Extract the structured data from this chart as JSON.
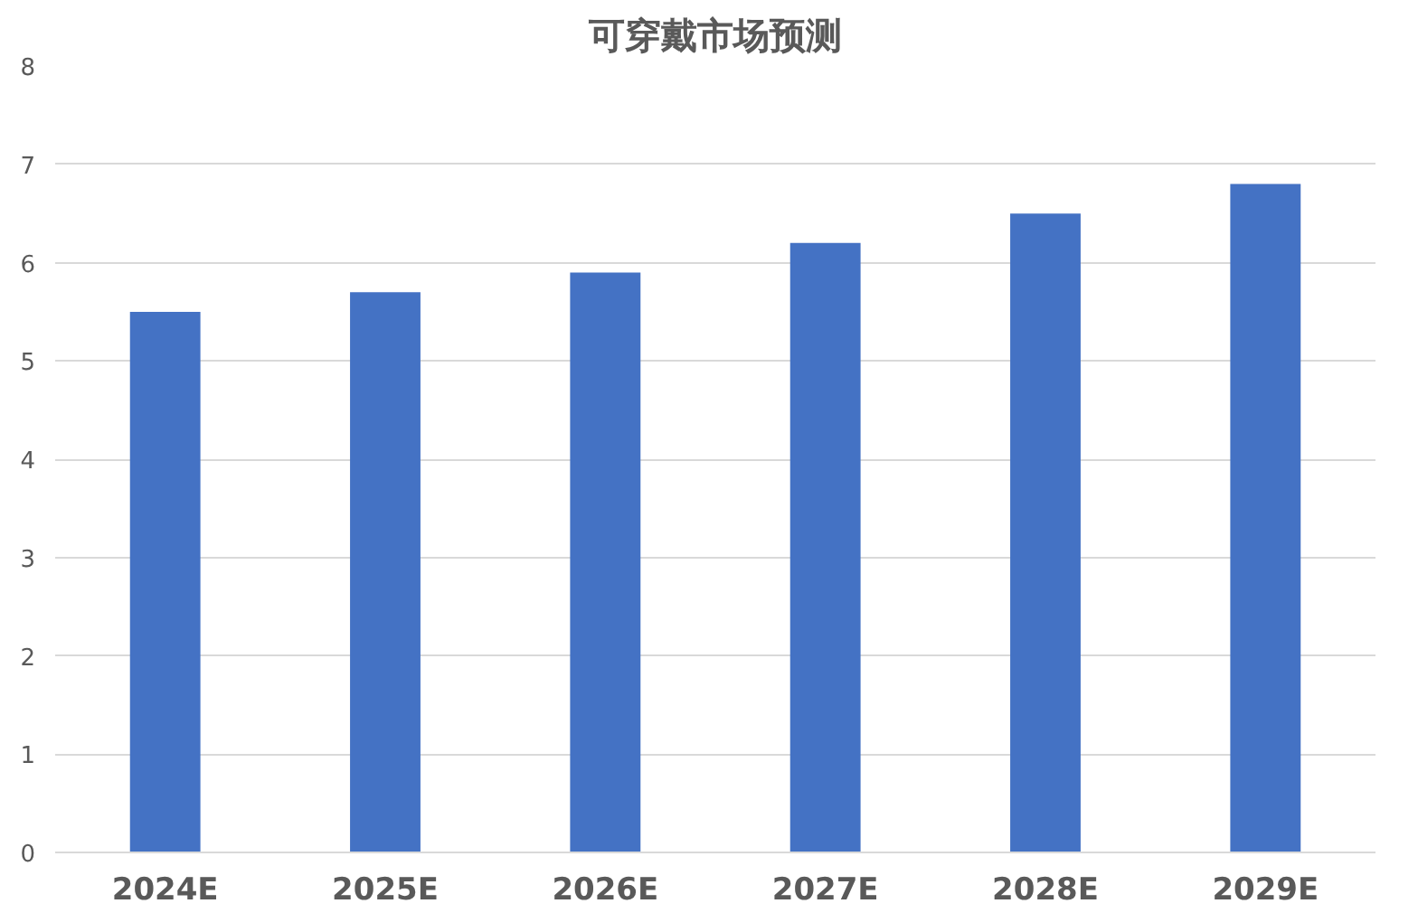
{
  "chart_data": {
    "type": "bar",
    "title": "可穿戴市场预测",
    "categories": [
      "2024E",
      "2025E",
      "2026E",
      "2027E",
      "2028E",
      "2029E"
    ],
    "values": [
      5.5,
      5.7,
      5.9,
      6.2,
      6.5,
      6.8
    ],
    "color": "#4472c4",
    "ylim": [
      0,
      8
    ],
    "yticks": [
      0,
      1,
      2,
      3,
      4,
      5,
      6,
      7,
      8
    ],
    "grid": "y"
  }
}
